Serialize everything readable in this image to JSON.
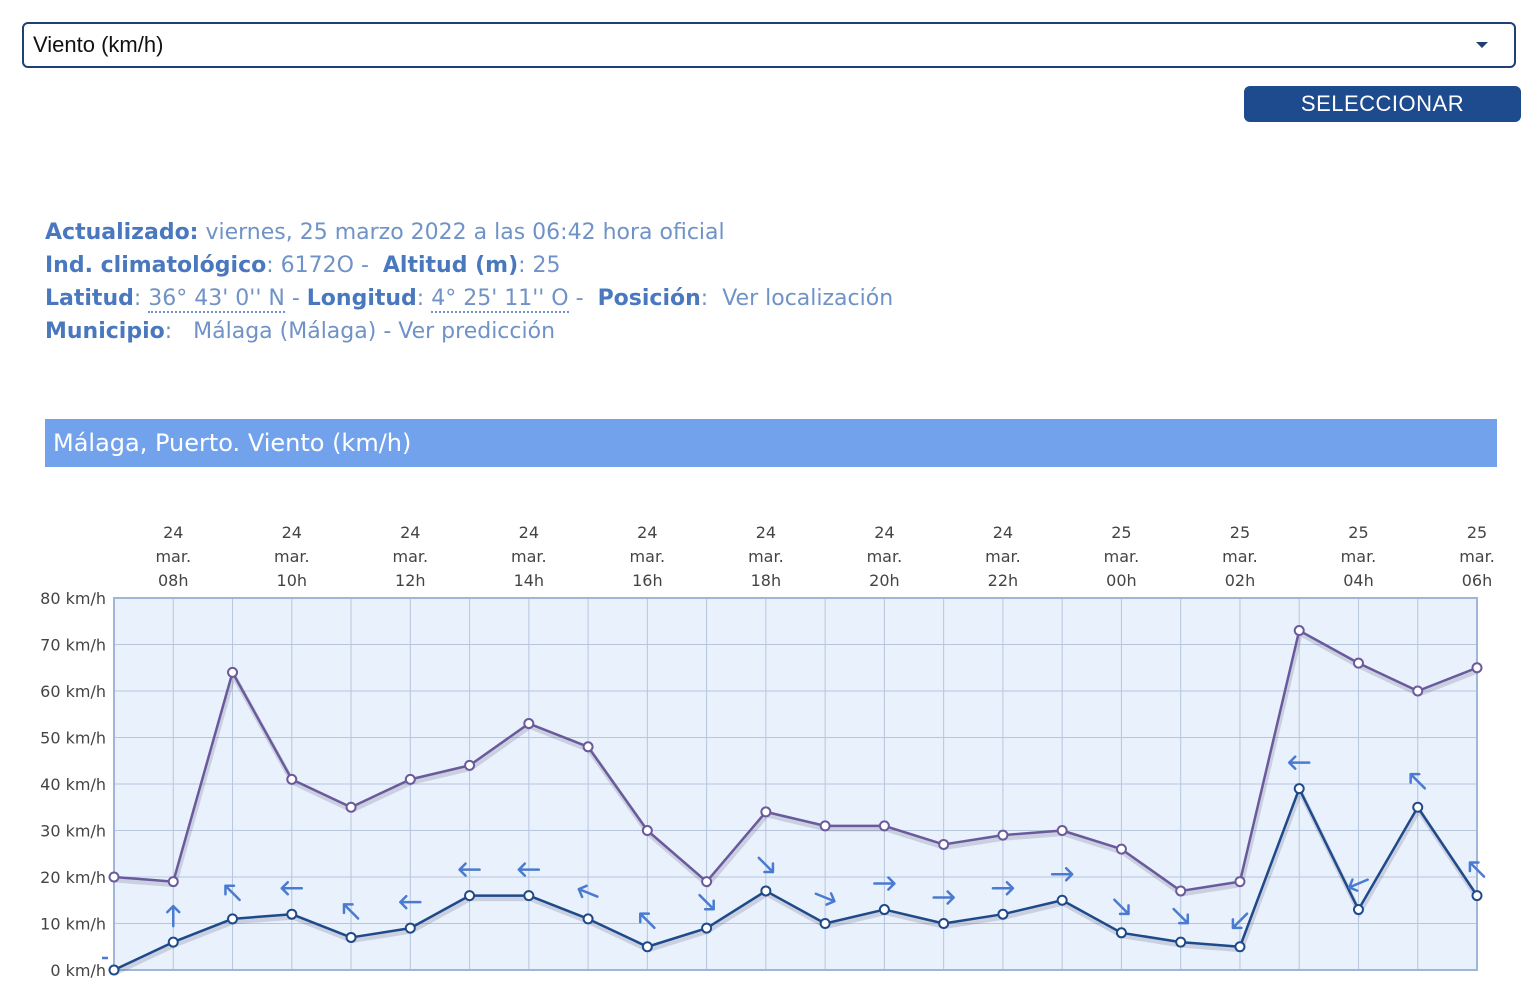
{
  "selector": {
    "value": "Viento (km/h)",
    "button_label": "SELECCIONAR"
  },
  "info": {
    "updated_label": "Actualizado:",
    "updated_value": "viernes, 25 marzo 2022 a las 06:42 hora oficial",
    "climat_label": "Ind. climatológico",
    "climat_value": ": 6172O -",
    "altitude_label": "Altitud (m)",
    "altitude_value": ": 25",
    "lat_label": "Latitud",
    "lat_value": "36° 43' 0'' N",
    "lon_label": "Longitud",
    "lon_value": "4° 25' 11'' O",
    "pos_label": "Posición",
    "pos_value": "Ver localización",
    "muni_label": "Municipio",
    "muni_value": "Málaga (Málaga) - Ver predicción"
  },
  "chart_title": "Málaga, Puerto. Viento (km/h)",
  "colors": {
    "gust": "#6a5a9c",
    "wind": "#1f4a8a",
    "arrow": "#4a7bd0",
    "plot_bg": "#e9f1fd",
    "grid": "#b7c6dd"
  },
  "chart_data": {
    "type": "line",
    "title": "Málaga, Puerto. Viento (km/h)",
    "ylim": [
      0,
      80
    ],
    "y_ticks": [
      "0 km/h",
      "10 km/h",
      "20 km/h",
      "30 km/h",
      "40 km/h",
      "50 km/h",
      "60 km/h",
      "70 km/h",
      "80 km/h"
    ],
    "x_labels": [
      [
        "24",
        "mar.",
        "08h"
      ],
      [
        "24",
        "mar.",
        "10h"
      ],
      [
        "24",
        "mar.",
        "12h"
      ],
      [
        "24",
        "mar.",
        "14h"
      ],
      [
        "24",
        "mar.",
        "16h"
      ],
      [
        "24",
        "mar.",
        "18h"
      ],
      [
        "24",
        "mar.",
        "20h"
      ],
      [
        "24",
        "mar.",
        "22h"
      ],
      [
        "25",
        "mar.",
        "00h"
      ],
      [
        "25",
        "mar.",
        "02h"
      ],
      [
        "25",
        "mar.",
        "04h"
      ],
      [
        "25",
        "mar.",
        "06h"
      ]
    ],
    "series": [
      {
        "values": [
          20,
          19,
          64,
          41,
          35,
          41,
          44,
          53,
          48,
          30,
          19,
          34,
          31,
          31,
          27,
          29,
          30,
          26,
          17,
          19,
          73,
          66,
          60,
          65
        ]
      },
      {
        "values": [
          0,
          6,
          11,
          12,
          7,
          9,
          16,
          16,
          11,
          5,
          9,
          17,
          10,
          13,
          10,
          12,
          15,
          8,
          6,
          5,
          39,
          13,
          35,
          16
        ],
        "direction_deg": [
          270,
          0,
          315,
          270,
          315,
          270,
          270,
          270,
          292,
          315,
          135,
          135,
          112,
          90,
          90,
          90,
          90,
          135,
          135,
          225,
          270,
          247,
          315,
          315
        ]
      }
    ],
    "grid": true
  }
}
